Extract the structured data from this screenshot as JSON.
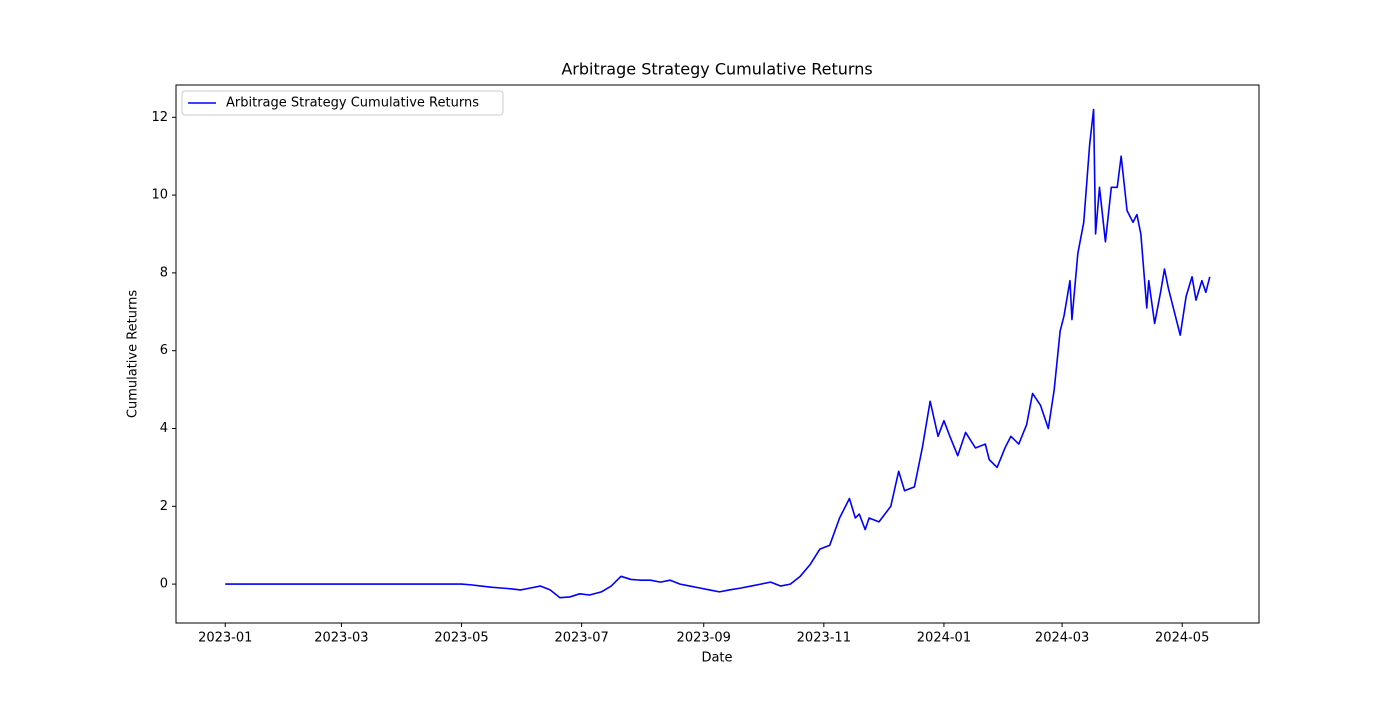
{
  "chart_data": {
    "type": "line",
    "title": "Arbitrage Strategy Cumulative Returns",
    "x_label": "Date",
    "y_label": "Cumulative Returns",
    "x": [
      19358,
      19478,
      19483,
      19488,
      19493,
      19498,
      19503,
      19508,
      19513,
      19518,
      19523,
      19528,
      19533,
      19538,
      19543,
      19549,
      19554,
      19559,
      19564,
      19569,
      19574,
      19579,
      19584,
      19589,
      19594,
      19599,
      19604,
      19609,
      19614,
      19620,
      19625,
      19630,
      19635,
      19640,
      19645,
      19650,
      19655,
      19660,
      19665,
      19670,
      19675,
      19678,
      19680,
      19683,
      19685,
      19690,
      19696,
      19700,
      19703,
      19708,
      19712,
      19716,
      19720,
      19723,
      19726,
      19730,
      19734,
      19739,
      19744,
      19746,
      19750,
      19754,
      19757,
      19761,
      19765,
      19768,
      19772,
      19776,
      19779,
      19782,
      19784,
      19787,
      19788,
      19791,
      19794,
      19797,
      19799,
      19800,
      19802,
      19805,
      19808,
      19811,
      19813,
      19816,
      19819,
      19821,
      19823,
      19826,
      19827,
      19830,
      19833,
      19835,
      19837,
      19840,
      19843,
      19846,
      19849,
      19851,
      19854,
      19856,
      19858
    ],
    "series": [
      {
        "name": "Arbitrage Strategy Cumulative Returns",
        "color": "#0000ff",
        "values": [
          0,
          0,
          -0.02,
          -0.05,
          -0.08,
          -0.1,
          -0.12,
          -0.15,
          -0.1,
          -0.05,
          -0.15,
          -0.35,
          -0.33,
          -0.25,
          -0.28,
          -0.2,
          -0.05,
          0.2,
          0.12,
          0.1,
          0.1,
          0.05,
          0.1,
          0.0,
          -0.05,
          -0.1,
          -0.15,
          -0.2,
          -0.15,
          -0.1,
          -0.05,
          0.0,
          0.05,
          -0.05,
          0.0,
          0.2,
          0.5,
          0.9,
          1.0,
          1.7,
          2.2,
          1.7,
          1.8,
          1.4,
          1.7,
          1.6,
          2.0,
          2.9,
          2.4,
          2.5,
          3.5,
          4.7,
          3.8,
          4.2,
          3.8,
          3.3,
          3.9,
          3.5,
          3.6,
          3.2,
          3.0,
          3.5,
          3.8,
          3.6,
          4.1,
          4.9,
          4.6,
          4.0,
          5.0,
          6.5,
          6.9,
          7.8,
          6.8,
          8.5,
          9.3,
          11.3,
          12.2,
          9.0,
          10.2,
          8.8,
          10.2,
          10.2,
          11.0,
          9.6,
          9.3,
          9.5,
          9.0,
          7.1,
          7.8,
          6.7,
          7.5,
          8.1,
          7.6,
          7.0,
          6.4,
          7.4,
          7.9,
          7.3,
          7.8,
          7.5,
          7.9
        ]
      }
    ],
    "xlim": [
      19333,
      19883
    ],
    "ylim": [
      -1.0,
      12.83
    ],
    "xticks": [
      {
        "value": 19358,
        "label": "2023-01"
      },
      {
        "value": 19417,
        "label": "2023-03"
      },
      {
        "value": 19478,
        "label": "2023-05"
      },
      {
        "value": 19539,
        "label": "2023-07"
      },
      {
        "value": 19601,
        "label": "2023-09"
      },
      {
        "value": 19662,
        "label": "2023-11"
      },
      {
        "value": 19723,
        "label": "2024-01"
      },
      {
        "value": 19783,
        "label": "2024-03"
      },
      {
        "value": 19844,
        "label": "2024-05"
      }
    ],
    "yticks": [
      0,
      2,
      4,
      6,
      8,
      10,
      12
    ],
    "grid": false,
    "legend": "upper left"
  }
}
